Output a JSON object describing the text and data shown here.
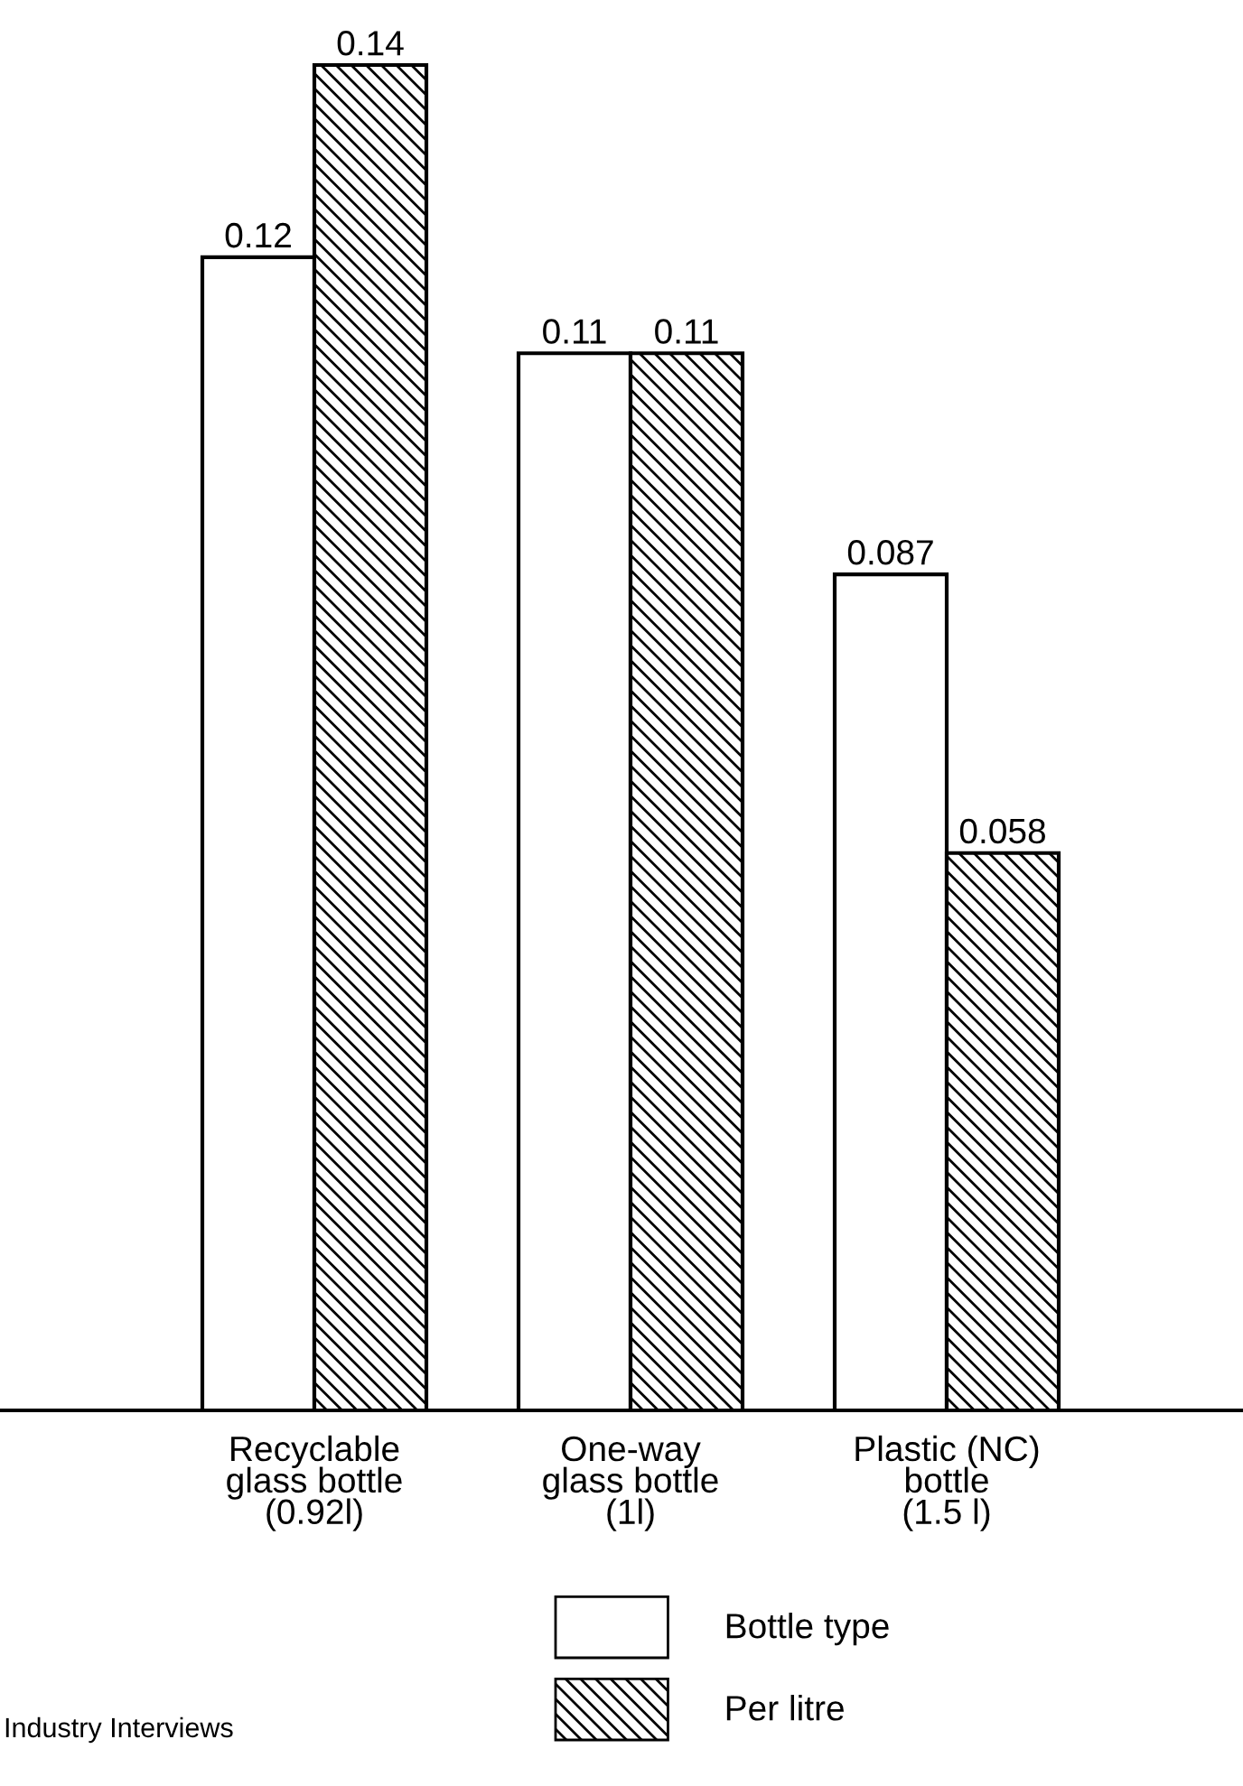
{
  "chart_data": {
    "type": "bar",
    "categories": [
      "Recyclable\nglass bottle\n(0.92l)",
      "One-way\nglass bottle\n(1l)",
      "Plastic (NC)\nbottle\n(1.5 l)"
    ],
    "series": [
      {
        "name": "Bottle type",
        "color": "#ffffff",
        "values": [
          0.12,
          0.11,
          0.087
        ]
      },
      {
        "name": "Per litre",
        "color": "#000000",
        "values": [
          0.14,
          0.11,
          0.058
        ]
      }
    ],
    "data_labels": true,
    "legend": "bottom",
    "grid": false,
    "annotations": [
      "Industry Interviews"
    ]
  }
}
